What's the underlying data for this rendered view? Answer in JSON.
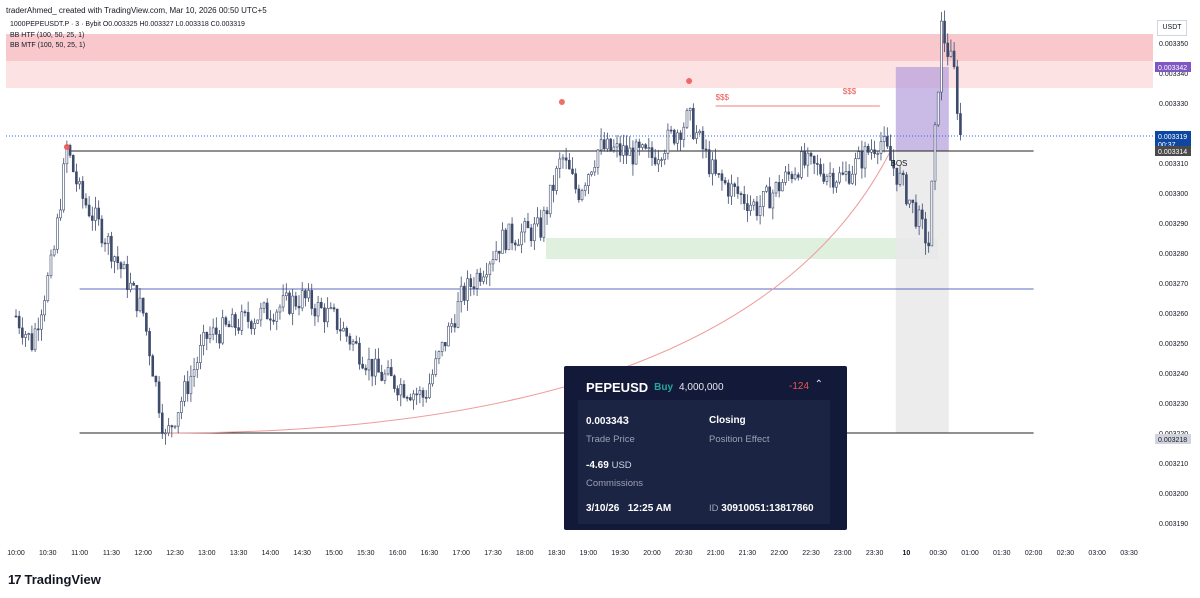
{
  "header": {
    "credit": "traderAhmed_ created with TradingView.com, Mar 10, 2026 00:50 UTC+5",
    "symbol_line": "1000PEPEUSDT.P · 3 · Bybit  O0.003325  H0.003327  L0.003318  C0.003319",
    "indicator1": "BB HTF (100, 50, 25, 1)",
    "indicator2": "BB MTF (100, 50, 25, 1)"
  },
  "axis": {
    "unit": "USDT"
  },
  "branding": {
    "logo_text": "TradingView",
    "logo_mark": "17"
  },
  "chart_data": {
    "type": "candlestick",
    "title": "1000PEPEUSDT.P · 3 · Bybit",
    "ohlc_last": {
      "open": 0.003325,
      "high": 0.003327,
      "low": 0.003318,
      "close": 0.003319
    },
    "ylim": [
      0.003185,
      0.003359
    ],
    "y_ticks": [
      0.00319,
      0.0032,
      0.00321,
      0.00322,
      0.00323,
      0.00324,
      0.00325,
      0.00326,
      0.00327,
      0.00328,
      0.00329,
      0.0033,
      0.00331,
      0.00332,
      0.00333,
      0.00334,
      0.00335
    ],
    "y_tick_labels": [
      "0.003190",
      "0.003200",
      "0.003210",
      "0.003220",
      "0.003230",
      "0.003240",
      "0.003250",
      "0.003260",
      "0.003270",
      "0.003280",
      "0.003290",
      "0.003300",
      "0.003310",
      "0.003320",
      "0.003330",
      "0.003340",
      "0.003350"
    ],
    "x_tick_labels": [
      "10:00",
      "10:30",
      "11:00",
      "11:30",
      "12:00",
      "12:30",
      "13:00",
      "13:30",
      "14:00",
      "14:30",
      "15:00",
      "15:30",
      "16:00",
      "16:30",
      "17:00",
      "17:30",
      "18:00",
      "18:30",
      "19:00",
      "19:30",
      "20:00",
      "20:30",
      "21:00",
      "21:30",
      "22:00",
      "22:30",
      "23:00",
      "23:30",
      "10",
      "00:30",
      "01:00",
      "01:30",
      "02:00",
      "02:30",
      "03:00",
      "03:30"
    ],
    "x_tick_times": [
      "2026-03-09 10:00",
      "2026-03-09 10:30",
      "2026-03-09 11:00",
      "2026-03-09 11:30",
      "2026-03-09 12:00",
      "2026-03-09 12:30",
      "2026-03-09 13:00",
      "2026-03-09 13:30",
      "2026-03-09 14:00",
      "2026-03-09 14:30",
      "2026-03-09 15:00",
      "2026-03-09 15:30",
      "2026-03-09 16:00",
      "2026-03-09 16:30",
      "2026-03-09 17:00",
      "2026-03-09 17:30",
      "2026-03-09 18:00",
      "2026-03-09 18:30",
      "2026-03-09 19:00",
      "2026-03-09 19:30",
      "2026-03-09 20:00",
      "2026-03-09 20:30",
      "2026-03-09 21:00",
      "2026-03-09 21:30",
      "2026-03-09 22:00",
      "2026-03-09 22:30",
      "2026-03-09 23:00",
      "2026-03-09 23:30",
      "2026-03-10 00:00",
      "2026-03-10 00:30",
      "2026-03-10 01:00",
      "2026-03-10 01:30",
      "2026-03-10 02:00",
      "2026-03-10 02:30",
      "2026-03-10 03:00",
      "2026-03-10 03:30"
    ],
    "anchor_points": [
      {
        "t": "2026-03-09 10:00",
        "p": 0.003259
      },
      {
        "t": "2026-03-09 10:15",
        "p": 0.00325
      },
      {
        "t": "2026-03-09 10:35",
        "p": 0.003278
      },
      {
        "t": "2026-03-09 10:48",
        "p": 0.003315
      },
      {
        "t": "2026-03-09 11:00",
        "p": 0.0033
      },
      {
        "t": "2026-03-09 11:25",
        "p": 0.003285
      },
      {
        "t": "2026-03-09 12:00",
        "p": 0.00326
      },
      {
        "t": "2026-03-09 12:21",
        "p": 0.003218
      },
      {
        "t": "2026-03-09 13:00",
        "p": 0.003252
      },
      {
        "t": "2026-03-09 13:40",
        "p": 0.003258
      },
      {
        "t": "2026-03-09 14:30",
        "p": 0.003265
      },
      {
        "t": "2026-03-09 15:00",
        "p": 0.003258
      },
      {
        "t": "2026-03-09 15:40",
        "p": 0.00324
      },
      {
        "t": "2026-03-09 16:25",
        "p": 0.003232
      },
      {
        "t": "2026-03-09 17:00",
        "p": 0.003265
      },
      {
        "t": "2026-03-09 17:40",
        "p": 0.003285
      },
      {
        "t": "2026-03-09 18:15",
        "p": 0.003288
      },
      {
        "t": "2026-03-09 18:35",
        "p": 0.003312
      },
      {
        "t": "2026-03-09 18:50",
        "p": 0.0033
      },
      {
        "t": "2026-03-09 19:10",
        "p": 0.003315
      },
      {
        "t": "2026-03-09 20:00",
        "p": 0.003312
      },
      {
        "t": "2026-03-09 20:35",
        "p": 0.003325
      },
      {
        "t": "2026-03-09 21:00",
        "p": 0.003305
      },
      {
        "t": "2026-03-09 21:40",
        "p": 0.003295
      },
      {
        "t": "2026-03-09 22:20",
        "p": 0.00331
      },
      {
        "t": "2026-03-09 23:00",
        "p": 0.003305
      },
      {
        "t": "2026-03-09 23:35",
        "p": 0.003318
      },
      {
        "t": "2026-03-10 00:00",
        "p": 0.0033
      },
      {
        "t": "2026-03-10 00:21",
        "p": 0.003283
      },
      {
        "t": "2026-03-10 00:33",
        "p": 0.003355
      },
      {
        "t": "2026-03-10 00:45",
        "p": 0.00334
      },
      {
        "t": "2026-03-10 00:51",
        "p": 0.003319
      }
    ],
    "levels": [
      {
        "name": "resistance",
        "value": 0.003314
      },
      {
        "name": "mid",
        "value": 0.003268
      },
      {
        "name": "support",
        "value": 0.00322
      },
      {
        "name": "current",
        "value": 0.003319
      }
    ],
    "zones": [
      {
        "name": "supply-upper",
        "from": 0.003344,
        "to": 0.003353,
        "color": "#f8c8cc"
      },
      {
        "name": "supply-lower",
        "from": 0.003335,
        "to": 0.003344,
        "color": "#fde2e4"
      },
      {
        "name": "demand",
        "from": 0.003278,
        "to": 0.003285,
        "color": "#dff0de"
      }
    ],
    "annotations": [
      {
        "text": "$$$",
        "t": "2026-03-09 21:00",
        "p": 0.003331
      },
      {
        "text": "$$$",
        "t": "2026-03-09 23:00",
        "p": 0.003333
      },
      {
        "text": "BOS",
        "t": "2026-03-09 23:45",
        "p": 0.003309
      }
    ],
    "price_labels": [
      {
        "text": "0.003342",
        "value": 0.003342,
        "bg": "#7e57c2",
        "fg": "#ffffff"
      },
      {
        "text": "0.003319",
        "value": 0.003319,
        "bg": "#0d47a1",
        "fg": "#ffffff",
        "sub": "00:37"
      },
      {
        "text": "0.003314",
        "value": 0.003314,
        "bg": "#4a4a4a",
        "fg": "#ffffff"
      },
      {
        "text": "0.003218",
        "value": 0.003218,
        "bg": "#d1d4dc",
        "fg": "#131722"
      }
    ]
  },
  "trade_card": {
    "symbol": "PEPEUSD",
    "side": "Buy",
    "quantity": "4,000,000",
    "pnl": "-124",
    "trade_price_prefix": "0.0033",
    "trade_price_suffix": "43",
    "trade_price_label": "Trade Price",
    "position_effect": "Closing",
    "position_effect_label": "Position Effect",
    "commission_value": "-4.69",
    "commission_currency": "USD",
    "commission_label": "Commissions",
    "date": "3/10/26",
    "time": "12:25 AM",
    "id_label": "ID",
    "id_value": "30910051:13817860"
  }
}
